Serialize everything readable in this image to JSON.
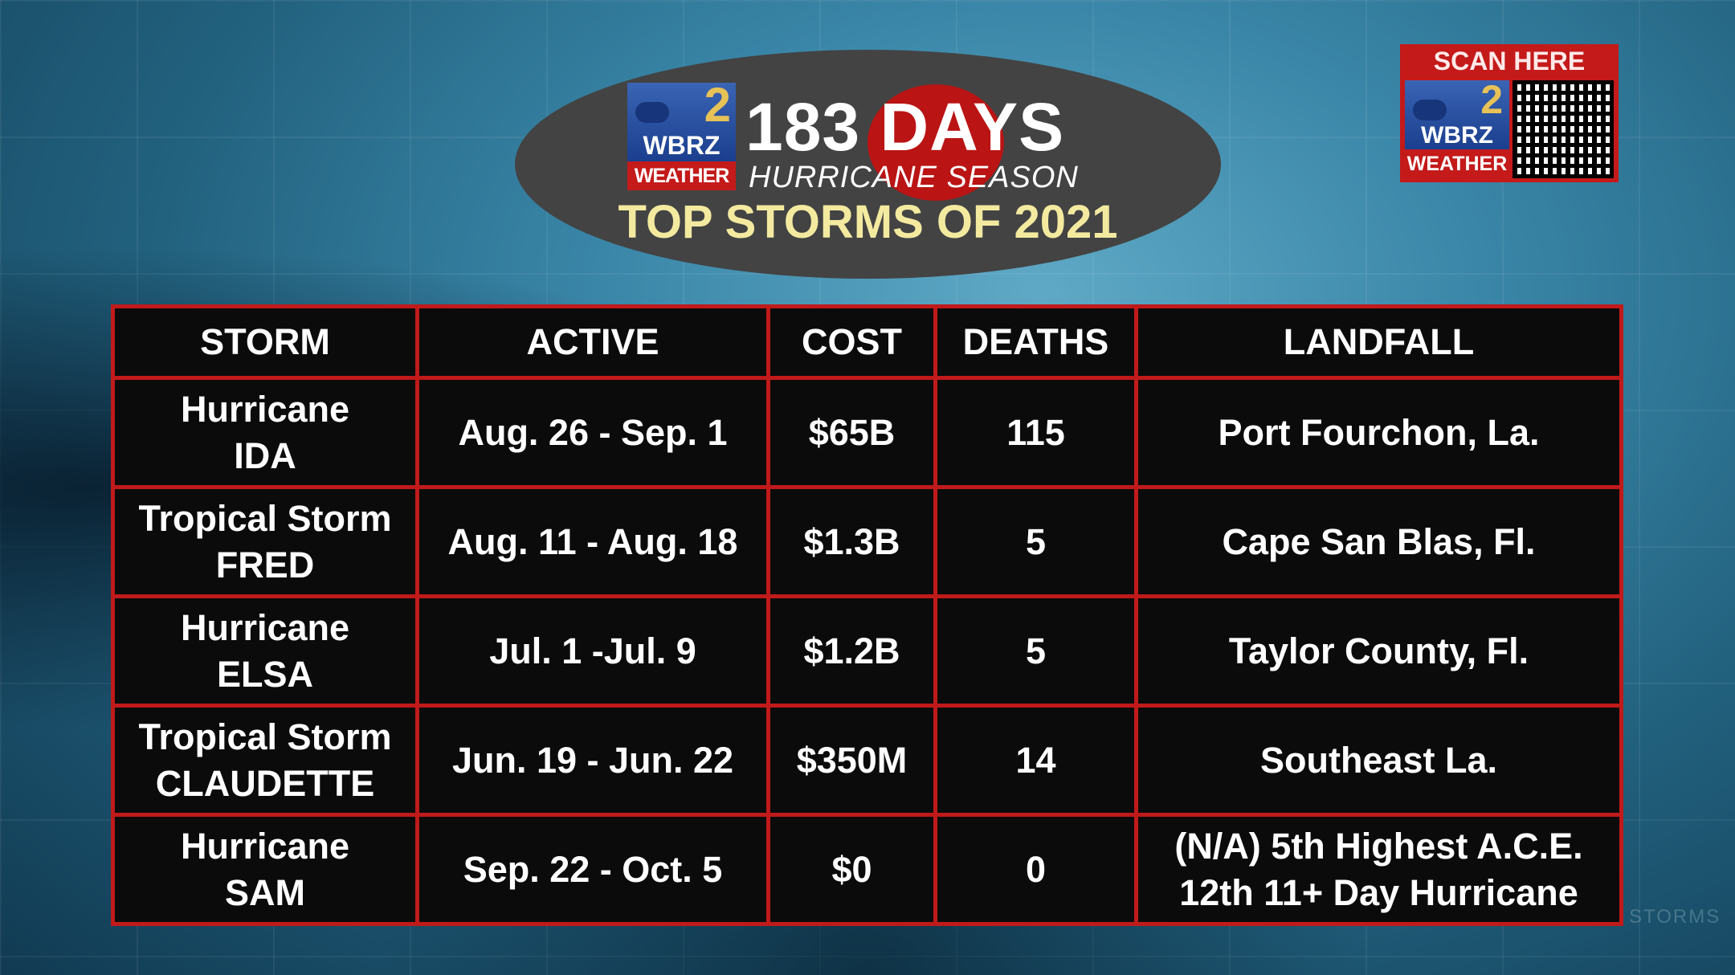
{
  "header": {
    "brand_number": "2",
    "brand_name": "WBRZ",
    "brand_sub": "WEATHER",
    "days": "183 DAYS",
    "season": "HURRICANE SEASON",
    "title": "TOP STORMS OF 2021"
  },
  "qr_panel": {
    "label": "SCAN HERE",
    "brand_number": "2",
    "brand_name": "WBRZ",
    "brand_sub": "WEATHER"
  },
  "colors": {
    "accent_red": "#c01a1a",
    "title_yellow": "#f3eaa0",
    "ellipse": "#434343"
  },
  "table": {
    "columns": [
      "STORM",
      "ACTIVE",
      "COST",
      "DEATHS",
      "LANDFALL"
    ],
    "rows": [
      {
        "storm_type": "Hurricane",
        "storm_name": "IDA",
        "active": "Aug. 26 - Sep. 1",
        "cost": "$65B",
        "deaths": "115",
        "landfall": "Port Fourchon, La.",
        "landfall2": ""
      },
      {
        "storm_type": "Tropical Storm",
        "storm_name": "FRED",
        "active": "Aug. 11 - Aug. 18",
        "cost": "$1.3B",
        "deaths": "5",
        "landfall": "Cape San Blas, Fl.",
        "landfall2": ""
      },
      {
        "storm_type": "Hurricane",
        "storm_name": "ELSA",
        "active": "Jul. 1 -Jul. 9",
        "cost": "$1.2B",
        "deaths": "5",
        "landfall": "Taylor County, Fl.",
        "landfall2": ""
      },
      {
        "storm_type": "Tropical Storm",
        "storm_name": "CLAUDETTE",
        "active": "Jun. 19 - Jun. 22",
        "cost": "$350M",
        "deaths": "14",
        "landfall": "Southeast La.",
        "landfall2": ""
      },
      {
        "storm_type": "Hurricane",
        "storm_name": "SAM",
        "active": "Sep. 22 - Oct. 5",
        "cost": "$0",
        "deaths": "0",
        "landfall": "(N/A) 5th Highest A.C.E.",
        "landfall2": "12th 11+ Day Hurricane"
      }
    ]
  },
  "watermark": "STORMS"
}
